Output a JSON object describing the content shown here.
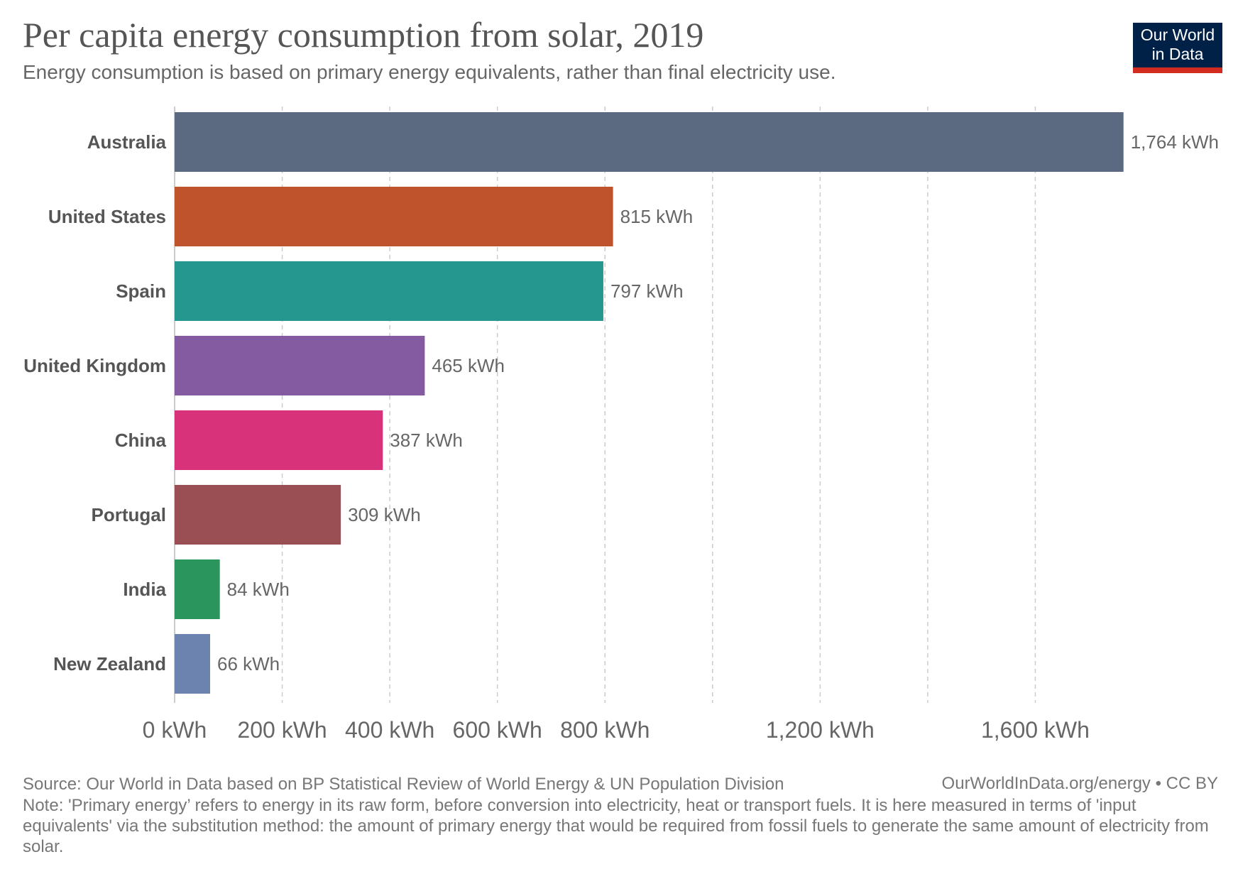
{
  "header": {
    "title": "Per capita energy consumption from solar, 2019",
    "subtitle": "Energy consumption is based on primary energy equivalents, rather than final electricity use."
  },
  "logo": {
    "line1": "Our World",
    "line2": "in Data"
  },
  "footer": {
    "source": "Source: Our World in Data based on BP Statistical Review of World Energy & UN Population Division",
    "credit": "OurWorldInData.org/energy • CC BY",
    "note": "Note: 'Primary energy’ refers to energy in its raw form, before conversion into electricity, heat or transport fuels. It is here measured in terms of 'input equivalents' via the substitution method: the amount of primary energy that would be required from fossil fuels to generate the same amount of electricity from solar."
  },
  "chart_data": {
    "type": "bar",
    "orientation": "horizontal",
    "title": "Per capita energy consumption from solar, 2019",
    "categories": [
      "Australia",
      "United States",
      "Spain",
      "United Kingdom",
      "China",
      "Portugal",
      "India",
      "New Zealand"
    ],
    "values": [
      1764,
      815,
      797,
      465,
      387,
      309,
      84,
      66
    ],
    "value_labels": [
      "1,764 kWh",
      "815 kWh",
      "797 kWh",
      "465 kWh",
      "387 kWh",
      "309 kWh",
      "84 kWh",
      "66 kWh"
    ],
    "colors": [
      "#5b6a80",
      "#be532c",
      "#25978f",
      "#845ba1",
      "#d8327b",
      "#9a4f55",
      "#2a955d",
      "#6b83ae"
    ],
    "xlim": [
      0,
      1800
    ],
    "grid_values": [
      0,
      200,
      400,
      600,
      800,
      1000,
      1200,
      1400,
      1600
    ],
    "x_ticks": [
      0,
      200,
      400,
      600,
      800,
      1200,
      1600
    ],
    "x_tick_labels": [
      "0 kWh",
      "200 kWh",
      "400 kWh",
      "600 kWh",
      "800 kWh",
      "1,200 kWh",
      "1,600 kWh"
    ],
    "grid": true,
    "legend": "none"
  }
}
